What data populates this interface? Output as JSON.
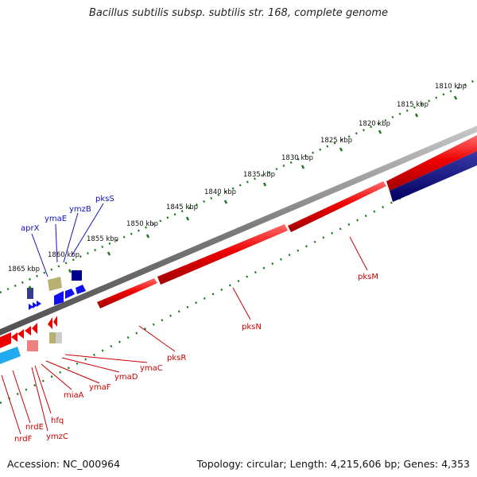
{
  "title": "Bacillus subtilis subsp. subtilis str. 168, complete genome",
  "footer": {
    "accession": "Accession: NC_000964",
    "stats": "Topology: circular; Length: 4,215,606 bp; Genes: 4,353"
  },
  "ticks": [
    "1810 kbp",
    "1815 kbp",
    "1820 kbp",
    "1825 kbp",
    "1830 kbp",
    "1835 kbp",
    "1840 kbp",
    "1845 kbp",
    "1850 kbp",
    "1855 kbp",
    "1860 kbp",
    "1865 kbp"
  ],
  "top_genes": [
    "aprX",
    "ymaE",
    "ymzB",
    "pksS"
  ],
  "bottom_genes": [
    "pksM",
    "pksN",
    "pksR",
    "ymaC",
    "ymaD",
    "ymaF",
    "miaA",
    "hfq",
    "ymzC",
    "nrdE",
    "nrdF"
  ],
  "colors": {
    "backbone": "#8a8a8a",
    "forward_cds": "#ee0000",
    "reverse_cds": "#000080",
    "tick_marks": "#1b7a1b",
    "top_label": "#1010c0",
    "bottom_label": "#c80000"
  }
}
